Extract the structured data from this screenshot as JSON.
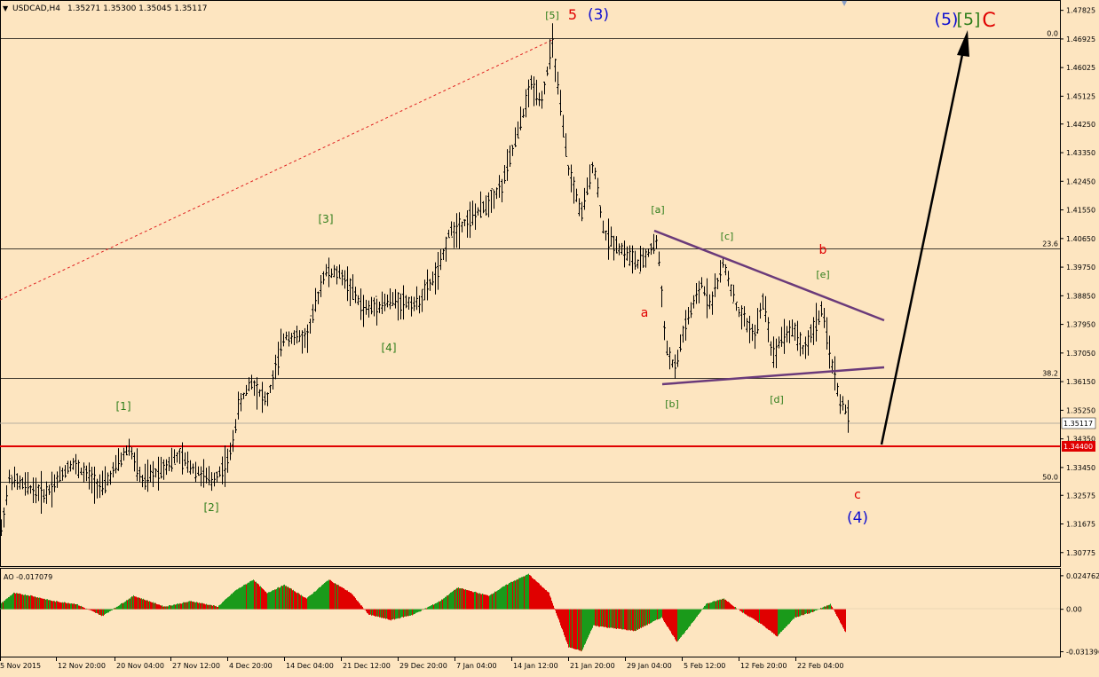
{
  "header": {
    "symbol": "USDCAD,H4",
    "ohlc": "1.35271 1.35300 1.35045 1.35117"
  },
  "price_axis": {
    "ticks": [
      "1.47825",
      "1.46925",
      "1.46025",
      "1.45125",
      "1.44250",
      "1.43350",
      "1.42450",
      "1.41550",
      "1.40650",
      "1.39750",
      "1.38850",
      "1.37950",
      "1.37050",
      "1.36150",
      "1.35250",
      "1.34350",
      "1.33450",
      "1.32575",
      "1.31675",
      "1.30775"
    ],
    "current_price": "1.35117",
    "support_price": "1.34400"
  },
  "time_axis": {
    "ticks": [
      "5 Nov 2015",
      "12 Nov 20:00",
      "20 Nov 04:00",
      "27 Nov 12:00",
      "4 Dec 20:00",
      "14 Dec 04:00",
      "21 Dec 12:00",
      "29 Dec 20:00",
      "7 Jan 04:00",
      "14 Jan 12:00",
      "21 Jan 20:00",
      "29 Jan 04:00",
      "5 Feb 12:00",
      "12 Feb 20:00",
      "22 Feb 04:00"
    ]
  },
  "fib_levels": [
    {
      "label": "0.0",
      "price": 1.4695
    },
    {
      "label": "23.6",
      "price": 1.4033
    },
    {
      "label": "38.2",
      "price": 1.3627
    },
    {
      "label": "50.0",
      "price": 1.33
    }
  ],
  "wave_labels": [
    {
      "text": "[5]",
      "color": "#2e7d1a"
    },
    {
      "text": "5",
      "color": "#e00000"
    },
    {
      "text": "(3)",
      "color": "#1010d0"
    },
    {
      "text": "(5)",
      "color": "#1010d0"
    },
    {
      "text": "[5]",
      "color": "#2e7d1a"
    },
    {
      "text": "C",
      "color": "#e00000"
    },
    {
      "text": "[3]",
      "color": "#2e7d1a"
    },
    {
      "text": "[1]",
      "color": "#2e7d1a"
    },
    {
      "text": "[2]",
      "color": "#2e7d1a"
    },
    {
      "text": "[4]",
      "color": "#2e7d1a"
    },
    {
      "text": "[a]",
      "color": "#2e7d1a"
    },
    {
      "text": "[b]",
      "color": "#2e7d1a"
    },
    {
      "text": "[c]",
      "color": "#2e7d1a"
    },
    {
      "text": "[d]",
      "color": "#2e7d1a"
    },
    {
      "text": "[e]",
      "color": "#2e7d1a"
    },
    {
      "text": "a",
      "color": "#e00000"
    },
    {
      "text": "b",
      "color": "#e00000"
    },
    {
      "text": "c",
      "color": "#e00000"
    },
    {
      "text": "(4)",
      "color": "#1010d0"
    }
  ],
  "indicator": {
    "label": "AO -0.017079",
    "ticks": [
      "0.024762",
      "0.00",
      "-0.031396"
    ]
  },
  "chart_data": {
    "type": "bar",
    "series_kind": "ohlc",
    "ylim": [
      1.3035,
      1.4815
    ],
    "anchors": [
      [
        0,
        1.313
      ],
      [
        10,
        1.331
      ],
      [
        50,
        1.326
      ],
      [
        80,
        1.336
      ],
      [
        115,
        1.328
      ],
      [
        145,
        1.341
      ],
      [
        160,
        1.33
      ],
      [
        200,
        1.338
      ],
      [
        238,
        1.33
      ],
      [
        258,
        1.337
      ],
      [
        268,
        1.353
      ],
      [
        282,
        1.362
      ],
      [
        300,
        1.355
      ],
      [
        320,
        1.376
      ],
      [
        345,
        1.375
      ],
      [
        365,
        1.396
      ],
      [
        385,
        1.395
      ],
      [
        410,
        1.384
      ],
      [
        440,
        1.387
      ],
      [
        470,
        1.386
      ],
      [
        495,
        1.397
      ],
      [
        505,
        1.408
      ],
      [
        540,
        1.415
      ],
      [
        565,
        1.423
      ],
      [
        585,
        1.442
      ],
      [
        598,
        1.455
      ],
      [
        610,
        1.45
      ],
      [
        622,
        1.468
      ],
      [
        632,
        1.445
      ],
      [
        640,
        1.428
      ],
      [
        655,
        1.414
      ],
      [
        668,
        1.431
      ],
      [
        680,
        1.408
      ],
      [
        700,
        1.403
      ],
      [
        720,
        1.398
      ],
      [
        740,
        1.406
      ],
      [
        750,
        1.372
      ],
      [
        760,
        1.365
      ],
      [
        770,
        1.378
      ],
      [
        790,
        1.392
      ],
      [
        800,
        1.386
      ],
      [
        815,
        1.399
      ],
      [
        830,
        1.384
      ],
      [
        850,
        1.376
      ],
      [
        860,
        1.388
      ],
      [
        870,
        1.369
      ],
      [
        880,
        1.376
      ],
      [
        895,
        1.378
      ],
      [
        905,
        1.371
      ],
      [
        925,
        1.384
      ],
      [
        935,
        1.37
      ],
      [
        945,
        1.356
      ],
      [
        955,
        1.351
      ]
    ],
    "ao_anchors": [
      [
        0,
        0.004
      ],
      [
        15,
        0.012
      ],
      [
        35,
        0.01
      ],
      [
        60,
        0.006
      ],
      [
        85,
        0.004
      ],
      [
        115,
        -0.005
      ],
      [
        150,
        0.01
      ],
      [
        185,
        0.002
      ],
      [
        215,
        0.006
      ],
      [
        245,
        0.002
      ],
      [
        265,
        0.014
      ],
      [
        285,
        0.022
      ],
      [
        300,
        0.012
      ],
      [
        320,
        0.018
      ],
      [
        345,
        0.008
      ],
      [
        370,
        0.022
      ],
      [
        395,
        0.012
      ],
      [
        415,
        -0.004
      ],
      [
        440,
        -0.008
      ],
      [
        465,
        -0.004
      ],
      [
        495,
        0.006
      ],
      [
        515,
        0.016
      ],
      [
        550,
        0.01
      ],
      [
        575,
        0.02
      ],
      [
        595,
        0.026
      ],
      [
        618,
        0.012
      ],
      [
        640,
        -0.028
      ],
      [
        655,
        -0.031
      ],
      [
        668,
        -0.012
      ],
      [
        690,
        -0.014
      ],
      [
        715,
        -0.016
      ],
      [
        745,
        -0.006
      ],
      [
        762,
        -0.024
      ],
      [
        775,
        -0.014
      ],
      [
        795,
        0.004
      ],
      [
        815,
        0.008
      ],
      [
        835,
        -0.002
      ],
      [
        855,
        -0.01
      ],
      [
        875,
        -0.02
      ],
      [
        895,
        -0.006
      ],
      [
        915,
        -0.002
      ],
      [
        935,
        0.004
      ],
      [
        952,
        -0.017
      ]
    ]
  }
}
